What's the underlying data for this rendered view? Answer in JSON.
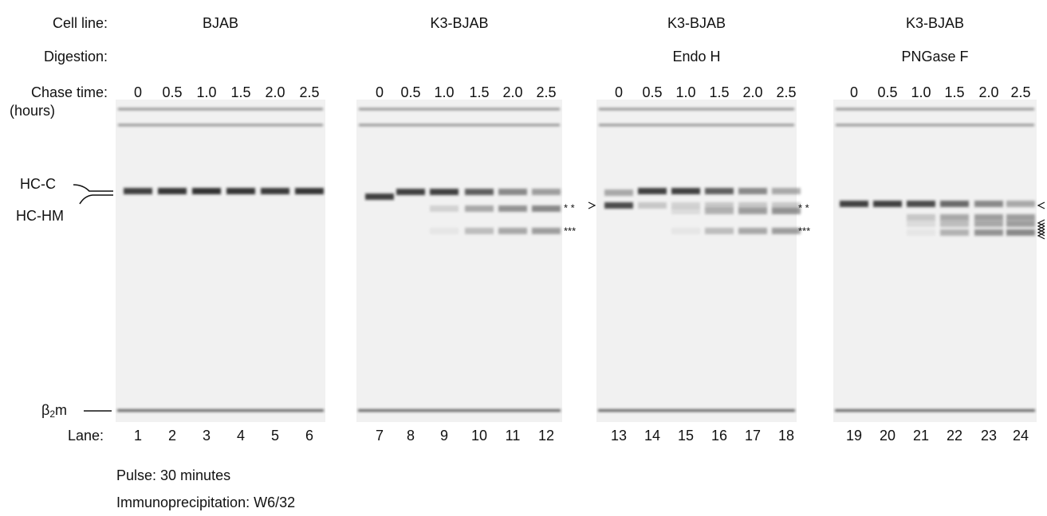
{
  "labels": {
    "cell_line": "Cell line:",
    "digestion": "Digestion:",
    "chase_time": "Chase time:",
    "hours": "(hours)",
    "lane": "Lane:",
    "hc_c": "HC-C",
    "hc_hm": "HC-HM",
    "b2m_base": "β",
    "b2m_sub": "2",
    "b2m_m": "m"
  },
  "panels": [
    {
      "cell_line": "BJAB",
      "chase_times": [
        "0",
        "0.5",
        "1.0",
        "1.5",
        "2.0",
        "2.5"
      ],
      "lanes": [
        "1",
        "2",
        "3",
        "4",
        "5",
        "6"
      ]
    },
    {
      "cell_line": "K3-BJAB",
      "chase_times": [
        "0",
        "0.5",
        "1.0",
        "1.5",
        "2.0",
        "2.5"
      ],
      "lanes": [
        "7",
        "8",
        "9",
        "10",
        "11",
        "12"
      ],
      "markers": [
        "* *",
        "***"
      ]
    },
    {
      "cell_line": "K3-BJAB",
      "digestion": "Endo H",
      "chase_times": [
        "0",
        "0.5",
        "1.0",
        "1.5",
        "2.0",
        "2.5"
      ],
      "lanes": [
        "13",
        "14",
        "15",
        "16",
        "17",
        "18"
      ],
      "markers": [
        "* *",
        "***"
      ]
    },
    {
      "cell_line": "K3-BJAB",
      "digestion": "PNGase F",
      "chase_times": [
        "0",
        "0.5",
        "1.0",
        "1.5",
        "2.0",
        "2.5"
      ],
      "lanes": [
        "19",
        "20",
        "21",
        "22",
        "23",
        "24"
      ]
    }
  ],
  "footer": {
    "pulse": "Pulse:  30 minutes",
    "ip": "Immunoprecipitation: W6/32"
  }
}
